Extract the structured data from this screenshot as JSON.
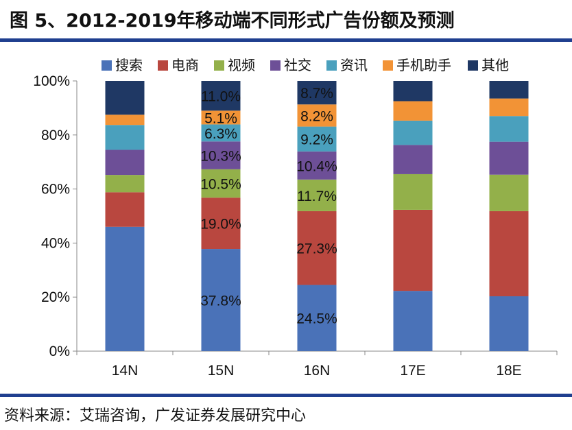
{
  "figure": {
    "title": "图 5、2012-2019年移动端不同形式广告份额及预测",
    "source": "资料来源：艾瑞咨询，广发证券发展研究中心"
  },
  "chart_data": {
    "type": "bar",
    "stacked": true,
    "categories": [
      "14N",
      "15N",
      "16N",
      "17E",
      "18E"
    ],
    "ylim": [
      0,
      100
    ],
    "yticks": [
      "0%",
      "20%",
      "40%",
      "60%",
      "80%",
      "100%"
    ],
    "legend_position": "top",
    "series": [
      {
        "name": "搜索",
        "color": "#4a72b8",
        "values": [
          46.0,
          37.8,
          24.5,
          22.3,
          20.3
        ]
      },
      {
        "name": "电商",
        "color": "#b9473f",
        "values": [
          12.8,
          19.0,
          27.3,
          30.0,
          31.5
        ]
      },
      {
        "name": "视频",
        "color": "#93b04a",
        "values": [
          6.4,
          10.5,
          11.7,
          13.2,
          13.5
        ]
      },
      {
        "name": "社交",
        "color": "#6d4f97",
        "values": [
          9.3,
          10.3,
          10.4,
          10.8,
          12.2
        ]
      },
      {
        "name": "资讯",
        "color": "#4aa0bd",
        "values": [
          9.2,
          6.3,
          9.2,
          9.0,
          9.5
        ]
      },
      {
        "name": "手机助手",
        "color": "#f29336",
        "values": [
          3.8,
          5.1,
          8.2,
          7.2,
          6.5
        ]
      },
      {
        "name": "其他",
        "color": "#1f3864",
        "values": [
          12.5,
          11.0,
          8.7,
          7.5,
          6.5
        ]
      }
    ],
    "data_labels": [
      {
        "category": "15N",
        "series": "搜索",
        "text": "37.8%"
      },
      {
        "category": "15N",
        "series": "电商",
        "text": "19.0%"
      },
      {
        "category": "15N",
        "series": "视频",
        "text": "10.5%"
      },
      {
        "category": "15N",
        "series": "社交",
        "text": "10.3%"
      },
      {
        "category": "15N",
        "series": "资讯",
        "text": "6.3%"
      },
      {
        "category": "15N",
        "series": "手机助手",
        "text": "5.1%"
      },
      {
        "category": "15N",
        "series": "其他",
        "text": "11.0%"
      },
      {
        "category": "16N",
        "series": "搜索",
        "text": "24.5%"
      },
      {
        "category": "16N",
        "series": "电商",
        "text": "27.3%"
      },
      {
        "category": "16N",
        "series": "视频",
        "text": "11.7%"
      },
      {
        "category": "16N",
        "series": "社交",
        "text": "10.4%"
      },
      {
        "category": "16N",
        "series": "资讯",
        "text": "9.2%"
      },
      {
        "category": "16N",
        "series": "手机助手",
        "text": "8.2%"
      },
      {
        "category": "16N",
        "series": "其他",
        "text": "8.7%"
      }
    ]
  }
}
